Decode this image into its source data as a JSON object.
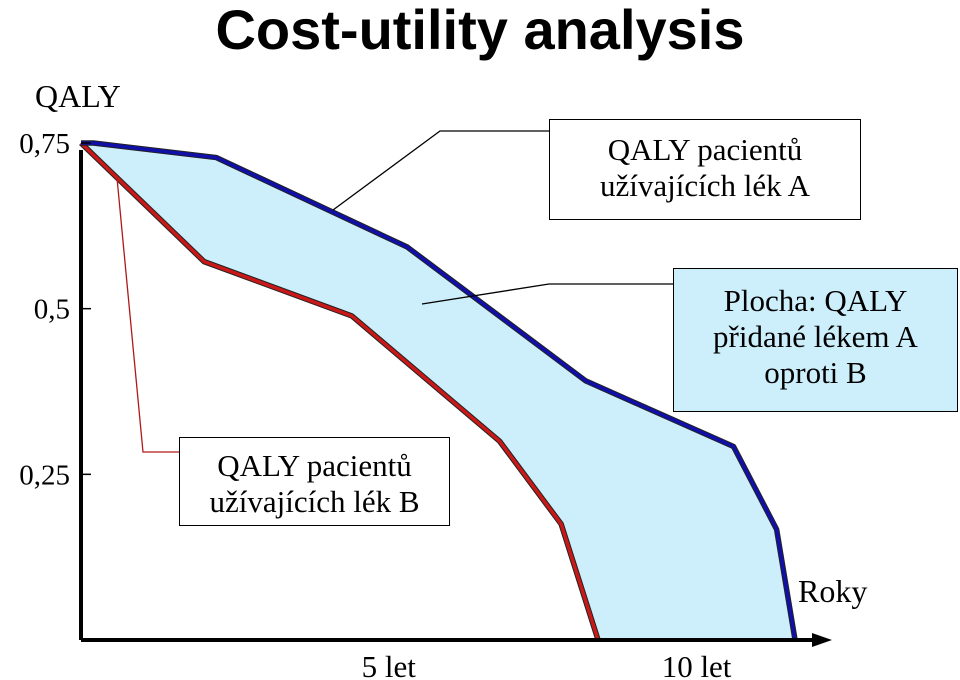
{
  "title": "Cost-utility analysis",
  "chart_data": {
    "type": "area",
    "title": "Cost-utility analysis",
    "ylabel": "QALY",
    "xlabel": "Roky",
    "yticks": [
      {
        "value": 0.75,
        "label": "0,75"
      },
      {
        "value": 0.5,
        "label": "0,5"
      },
      {
        "value": 0.25,
        "label": "0,25"
      }
    ],
    "xticks": [
      {
        "value": 5,
        "label": "5 let"
      },
      {
        "value": 10,
        "label": "10 let"
      }
    ],
    "ylim": [
      0,
      0.75
    ],
    "xlim": [
      0,
      12.2
    ],
    "series": [
      {
        "name": "QALY pacientů užívajících lék A",
        "color": "#1010a8",
        "x": [
          0,
          0.2,
          2.2,
          5.3,
          8.2,
          10.6,
          11.3,
          11.6
        ],
        "y": [
          0.75,
          0.75,
          0.728,
          0.593,
          0.391,
          0.292,
          0.167,
          0
        ]
      },
      {
        "name": "QALY pacientů užívajících lék B",
        "color": "#c81818",
        "x": [
          0,
          2.0,
          4.4,
          6.8,
          7.8,
          8.4
        ],
        "y": [
          0.75,
          0.571,
          0.489,
          0.3,
          0.175,
          0
        ]
      }
    ],
    "fill_color": "#cdeffc"
  },
  "labels": {
    "box_a_line1": "QALY pacientů",
    "box_a_line2": "užívajících lék A",
    "box_area_line1": "Plocha: QALY",
    "box_area_line2": "přidané lékem A",
    "box_area_line3": "oproti B",
    "box_b_line1": "QALY pacientů",
    "box_b_line2": "užívajících lék B"
  }
}
